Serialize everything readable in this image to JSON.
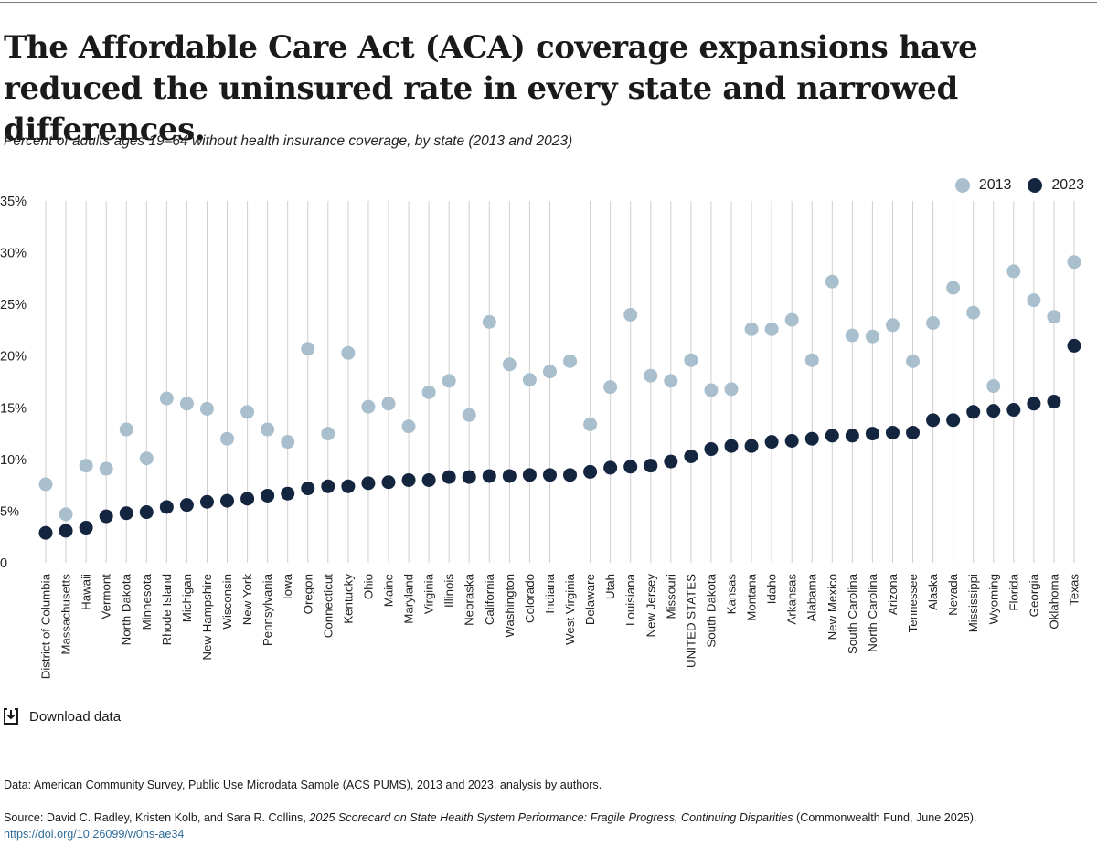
{
  "title": "The Affordable Care Act (ACA) coverage expansions have reduced the uninsured rate in every state and narrowed differences.",
  "subtitle": "Percent of adults ages 19–64 without health insurance coverage, by state (2013 and 2023)",
  "legend": [
    {
      "label": "2013",
      "color": "#a9bfcd"
    },
    {
      "label": "2023",
      "color": "#14253f"
    }
  ],
  "download_label": "Download data",
  "data_note": "Data: American Community Survey, Public Use Microdata Sample (ACS PUMS), 2013 and 2023, analysis by authors.",
  "source": {
    "prefix": "Source: David C. Radley, Kristen Kolb, and Sara R. Collins, ",
    "title": "2025 Scorecard on State Health System Performance: Fragile Progress, Continuing Disparities",
    "suffix": " (Commonwealth Fund, June 2025).",
    "link": "https://doi.org/10.26099/w0ns-ae34"
  },
  "chart_data": {
    "type": "scatter",
    "title": "Percent of adults ages 19–64 without health insurance coverage, by state (2013 and 2023)",
    "xlabel": "",
    "ylabel": "",
    "ylim": [
      0,
      35
    ],
    "yticks": [
      0,
      5,
      10,
      15,
      20,
      25,
      30,
      35
    ],
    "ytick_labels": [
      "0",
      "5%",
      "10%",
      "15%",
      "20%",
      "25%",
      "30%",
      "35%"
    ],
    "grid": "vertical",
    "legend_position": "top-right",
    "categories": [
      "District of Columbia",
      "Massachusetts",
      "Hawaii",
      "Vermont",
      "North Dakota",
      "Minnesota",
      "Rhode Island",
      "Michigan",
      "New Hampshire",
      "Wisconsin",
      "New York",
      "Pennsylvania",
      "Iowa",
      "Oregon",
      "Connecticut",
      "Kentucky",
      "Ohio",
      "Maine",
      "Maryland",
      "Virginia",
      "Illinois",
      "Nebraska",
      "California",
      "Washington",
      "Colorado",
      "Indiana",
      "West Virginia",
      "Delaware",
      "Utah",
      "Louisiana",
      "New Jersey",
      "Missouri",
      "UNITED STATES",
      "South Dakota",
      "Kansas",
      "Montana",
      "Idaho",
      "Arkansas",
      "Alabama",
      "New Mexico",
      "South Carolina",
      "North Carolina",
      "Arizona",
      "Tennessee",
      "Alaska",
      "Nevada",
      "Mississippi",
      "Wyoming",
      "Florida",
      "Georgia",
      "Oklahoma",
      "Texas"
    ],
    "series": [
      {
        "name": "2013",
        "color": "#a9bfcd",
        "values": [
          7.6,
          4.7,
          9.4,
          9.1,
          12.9,
          10.1,
          15.9,
          15.4,
          14.9,
          12.0,
          14.6,
          12.9,
          11.7,
          20.7,
          12.5,
          20.3,
          15.1,
          15.4,
          13.2,
          16.5,
          17.6,
          14.3,
          23.3,
          19.2,
          17.7,
          18.5,
          19.5,
          13.4,
          17.0,
          24.0,
          18.1,
          17.6,
          19.6,
          16.7,
          16.8,
          22.6,
          22.6,
          23.5,
          19.6,
          27.2,
          22.0,
          21.9,
          23.0,
          19.5,
          23.2,
          26.6,
          24.2,
          17.1,
          28.2,
          25.4,
          23.8,
          29.1
        ]
      },
      {
        "name": "2023",
        "color": "#14253f",
        "values": [
          2.9,
          3.1,
          3.4,
          4.5,
          4.8,
          4.9,
          5.4,
          5.6,
          5.9,
          6.0,
          6.2,
          6.5,
          6.7,
          7.2,
          7.4,
          7.4,
          7.7,
          7.8,
          8.0,
          8.0,
          8.3,
          8.3,
          8.4,
          8.4,
          8.5,
          8.5,
          8.5,
          8.8,
          9.2,
          9.3,
          9.4,
          9.8,
          10.3,
          11.0,
          11.3,
          11.3,
          11.7,
          11.8,
          12.0,
          12.3,
          12.3,
          12.5,
          12.6,
          12.6,
          13.8,
          13.8,
          14.6,
          14.7,
          14.8,
          15.4,
          15.6,
          21.0
        ]
      }
    ]
  }
}
